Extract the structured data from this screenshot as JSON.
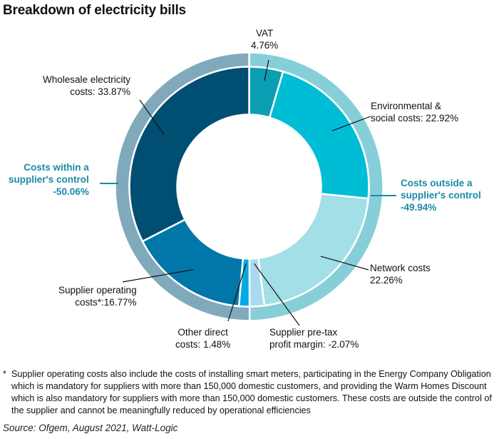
{
  "chart_data": {
    "type": "pie",
    "title": "Breakdown of electricity bills",
    "slices": [
      {
        "name": "VAT",
        "value": 4.76,
        "label": "VAT",
        "pct": "4.76%",
        "color": "#0a9fb2",
        "group": "outside"
      },
      {
        "name": "Environmental & social costs",
        "value": 22.92,
        "label": "Environmental &\nsocial costs: 22.92%",
        "color": "#00bdd6",
        "group": "outside"
      },
      {
        "name": "Network costs",
        "value": 22.26,
        "label": "Network costs\n22.26%",
        "color": "#a2dfe7",
        "group": "outside"
      },
      {
        "name": "Supplier pre-tax profit margin",
        "value": -2.07,
        "label": "Supplier pre-tax\nprofit margin: -2.07%",
        "color": "#a9d9ef",
        "group": "inside"
      },
      {
        "name": "Other direct costs",
        "value": 1.48,
        "label": "Other direct\ncosts: 1.48%",
        "color": "#00a9e2",
        "group": "inside"
      },
      {
        "name": "Supplier operating costs*",
        "value": 16.77,
        "label": "Supplier operating\ncosts*:16.77%",
        "color": "#0077a8",
        "group": "inside"
      },
      {
        "name": "Wholesale electricity costs",
        "value": 33.87,
        "label": "Wholesale electricity\ncosts: 33.87%",
        "color": "#004e71",
        "group": "inside"
      }
    ],
    "groups": [
      {
        "name": "outside",
        "label": "Costs outside a\nsupplier's control\n-49.94%",
        "value": 49.94,
        "color": "#86cfd9"
      },
      {
        "name": "inside",
        "label": "Costs within a\nsupplier's control\n-50.06%",
        "value": 50.06,
        "color": "#80aabb"
      }
    ],
    "group_label_color": "#1a8aa6"
  },
  "footnote_star": "*",
  "footnote": "Supplier operating costs also include the costs of installing smart meters, participating in the Energy Company Obligation which is mandatory for suppliers with more than 150,000 domestic customers, and providing the Warm Homes Discount which is also mandatory for suppliers with more than 150,000 domestic customers. These costs are outside the control of the supplier and cannot be meaningfully reduced by operational efficiencies",
  "source": "Source: Ofgem, August 2021, Watt-Logic"
}
